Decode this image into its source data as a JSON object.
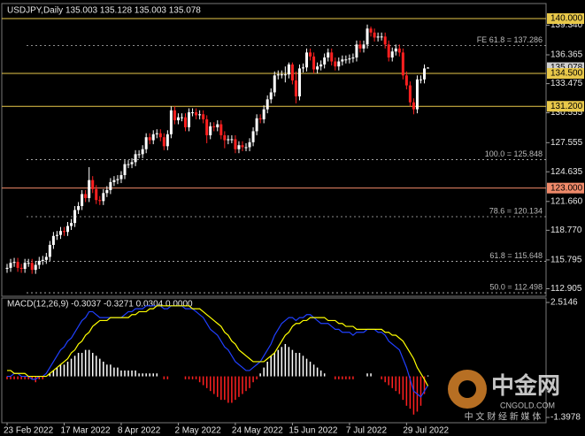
{
  "chart_data": {
    "type": "candlestick",
    "symbol_header": "USDJPY,Daily  135.003 135.128 135.003 135.078",
    "categories": [
      "23 Feb 2022",
      null,
      null,
      null,
      null,
      null,
      null,
      null,
      null,
      null,
      null,
      null,
      null,
      null,
      null,
      null,
      "17 Mar 2022",
      null,
      null,
      null,
      null,
      null,
      null,
      null,
      null,
      null,
      null,
      null,
      null,
      null,
      null,
      null,
      "8 Apr 2022",
      null,
      null,
      null,
      null,
      null,
      null,
      null,
      null,
      null,
      null,
      null,
      null,
      null,
      null,
      null,
      "2 May 2022",
      null,
      null,
      null,
      null,
      null,
      null,
      null,
      null,
      null,
      null,
      null,
      null,
      null,
      null,
      null,
      "24 May 2022",
      null,
      null,
      null,
      null,
      null,
      null,
      null,
      null,
      null,
      null,
      null,
      null,
      null,
      null,
      null,
      "15 Jun 2022",
      null,
      null,
      null,
      null,
      null,
      null,
      null,
      null,
      null,
      null,
      null,
      null,
      null,
      null,
      null,
      "7 Jul 2022",
      null,
      null,
      null,
      null,
      null,
      null,
      null,
      null,
      null,
      null,
      null,
      null,
      null,
      null,
      null,
      "29 Jul 2022",
      null,
      null,
      null,
      null,
      null,
      null
    ],
    "open": [
      114.9,
      115.0,
      115.5,
      115.6,
      115.0,
      114.9,
      115.5,
      115.5,
      114.8,
      115.3,
      115.7,
      115.8,
      116.1,
      117.3,
      118.2,
      118.3,
      118.7,
      118.6,
      119.2,
      119.5,
      120.8,
      121.2,
      122.4,
      122.0,
      123.8,
      122.9,
      121.8,
      121.7,
      122.5,
      122.8,
      123.6,
      123.8,
      123.9,
      124.3,
      125.4,
      125.4,
      125.6,
      126.4,
      126.4,
      126.9,
      128.1,
      127.8,
      128.4,
      128.5,
      128.1,
      127.2,
      128.4,
      130.8,
      129.8,
      130.1,
      130.1,
      129.1,
      130.6,
      130.6,
      130.3,
      130.4,
      129.9,
      128.3,
      129.2,
      129.1,
      129.4,
      128.3,
      127.8,
      127.9,
      127.9,
      126.9,
      127.3,
      127.1,
      127.1,
      127.6,
      128.7,
      130.0,
      129.9,
      130.9,
      131.9,
      132.6,
      134.3,
      134.4,
      134.4,
      134.4,
      135.4,
      133.8,
      132.2,
      135.0,
      135.1,
      136.6,
      136.2,
      134.9,
      135.2,
      135.4,
      136.1,
      136.6,
      135.7,
      135.2,
      135.7,
      135.9,
      135.9,
      136.0,
      136.1,
      137.4,
      137.0,
      137.4,
      139.0,
      138.6,
      138.1,
      138.2,
      138.2,
      137.4,
      136.1,
      136.7,
      137.0,
      136.6,
      134.3,
      133.3,
      131.6,
      130.9,
      133.9,
      133.9,
      135.003
    ],
    "high": [
      115.4,
      115.9,
      116.0,
      116.0,
      115.4,
      115.9,
      115.9,
      115.9,
      115.7,
      116.1,
      116.2,
      116.5,
      117.7,
      118.6,
      118.7,
      119.1,
      119.1,
      119.6,
      119.9,
      121.2,
      121.6,
      122.8,
      122.8,
      125.1,
      124.2,
      123.3,
      122.2,
      122.9,
      123.2,
      124.0,
      124.2,
      124.3,
      124.7,
      125.8,
      125.8,
      126.0,
      126.8,
      126.8,
      127.3,
      128.5,
      128.5,
      128.8,
      128.9,
      128.9,
      128.5,
      128.8,
      131.2,
      131.2,
      130.5,
      130.5,
      130.5,
      131.0,
      131.0,
      131.0,
      130.8,
      130.8,
      130.3,
      129.6,
      129.6,
      129.8,
      129.8,
      128.7,
      128.3,
      128.3,
      128.3,
      127.7,
      127.7,
      127.5,
      128.0,
      129.1,
      130.4,
      130.4,
      131.3,
      132.3,
      133.0,
      134.7,
      134.8,
      134.8,
      135.2,
      135.6,
      135.6,
      134.7,
      135.4,
      135.5,
      137.0,
      137.0,
      136.6,
      135.6,
      135.8,
      136.5,
      137.0,
      137.0,
      136.1,
      136.1,
      136.3,
      136.3,
      136.4,
      136.5,
      137.8,
      137.8,
      137.8,
      139.4,
      139.2,
      139.0,
      138.6,
      138.6,
      138.6,
      137.8,
      137.1,
      137.4,
      137.4,
      137.0,
      134.7,
      133.7,
      132.0,
      134.3,
      134.3,
      135.4,
      135.128
    ],
    "low": [
      114.5,
      114.6,
      115.1,
      114.6,
      114.5,
      114.5,
      115.1,
      114.4,
      114.4,
      114.9,
      115.3,
      115.4,
      115.7,
      116.9,
      117.8,
      117.9,
      118.2,
      118.2,
      118.8,
      119.1,
      120.4,
      120.8,
      121.6,
      121.6,
      122.5,
      121.4,
      121.3,
      121.3,
      122.1,
      122.4,
      123.2,
      123.4,
      123.5,
      123.9,
      125.0,
      125.0,
      125.2,
      126.0,
      126.0,
      126.5,
      127.4,
      127.4,
      128.0,
      127.7,
      126.8,
      126.8,
      128.0,
      129.4,
      129.4,
      129.7,
      128.7,
      128.7,
      130.2,
      129.9,
      129.9,
      129.5,
      127.5,
      127.9,
      128.7,
      128.7,
      127.9,
      127.0,
      127.4,
      127.5,
      126.5,
      126.5,
      126.7,
      126.7,
      126.7,
      127.2,
      128.3,
      129.5,
      129.5,
      130.5,
      131.5,
      132.2,
      133.9,
      134.0,
      133.6,
      134.0,
      133.4,
      131.5,
      131.8,
      134.6,
      134.7,
      135.8,
      134.5,
      134.5,
      134.8,
      135.0,
      135.7,
      135.3,
      134.8,
      134.8,
      135.3,
      135.5,
      135.5,
      135.6,
      135.7,
      136.6,
      136.6,
      137.0,
      138.2,
      137.7,
      137.7,
      137.8,
      137.0,
      135.7,
      135.7,
      136.3,
      136.2,
      133.9,
      132.9,
      131.2,
      130.4,
      130.5,
      133.5,
      133.5,
      135.003
    ],
    "close": [
      115.0,
      115.5,
      115.6,
      115.0,
      114.9,
      115.5,
      115.5,
      114.8,
      115.3,
      115.7,
      115.8,
      116.1,
      117.3,
      118.2,
      118.3,
      118.7,
      118.6,
      119.2,
      119.5,
      120.8,
      121.2,
      122.4,
      122.0,
      123.8,
      122.9,
      121.8,
      121.7,
      122.5,
      122.8,
      123.6,
      123.8,
      123.9,
      124.3,
      125.4,
      125.4,
      125.6,
      126.4,
      126.4,
      126.9,
      128.1,
      127.8,
      128.4,
      128.5,
      128.1,
      127.2,
      128.4,
      130.8,
      129.8,
      130.1,
      130.1,
      129.1,
      130.6,
      130.6,
      130.3,
      130.4,
      129.9,
      128.3,
      129.2,
      129.1,
      129.4,
      128.3,
      127.8,
      127.9,
      127.9,
      126.9,
      127.3,
      127.1,
      127.1,
      127.6,
      128.7,
      130.0,
      129.9,
      130.9,
      131.9,
      132.6,
      134.3,
      134.4,
      134.4,
      134.4,
      135.4,
      133.8,
      132.2,
      135.0,
      135.1,
      136.6,
      136.2,
      134.9,
      135.2,
      135.4,
      136.1,
      136.6,
      135.7,
      135.2,
      135.7,
      135.9,
      135.9,
      136.0,
      136.1,
      137.4,
      137.0,
      137.4,
      139.0,
      138.6,
      138.1,
      138.2,
      138.2,
      137.4,
      136.1,
      136.7,
      137.0,
      136.6,
      134.3,
      133.3,
      131.6,
      130.9,
      133.9,
      133.9,
      135.0,
      135.078
    ],
    "up_color": "#ffffff",
    "down_color": "#ff2020",
    "ylim": [
      112.15,
      141.51
    ],
    "yticks": [
      {
        "value": 139.34,
        "label": "139.340"
      },
      {
        "value": 136.365,
        "label": "136.365"
      },
      {
        "value": 133.475,
        "label": "133.475"
      },
      {
        "value": 130.555,
        "label": "130.555"
      },
      {
        "value": 127.555,
        "label": "127.555"
      },
      {
        "value": 124.635,
        "label": "124.635"
      },
      {
        "value": 121.66,
        "label": "121.660"
      },
      {
        "value": 118.77,
        "label": "118.770"
      },
      {
        "value": 115.795,
        "label": "115.795"
      },
      {
        "value": 112.905,
        "label": "112.905"
      }
    ],
    "last_price": {
      "value": 135.078,
      "label": "135.078"
    },
    "levels": [
      {
        "value": 140,
        "label": "140.000",
        "color": "#e8c84a"
      },
      {
        "value": 134.5,
        "label": "134.500",
        "color": "#e8c84a"
      },
      {
        "value": 131.2,
        "label": "131.200",
        "color": "#e8c84a"
      },
      {
        "value": 123,
        "label": "123.000",
        "color": "#f08a6a"
      }
    ],
    "fib_levels": [
      {
        "value": 137.286,
        "label": "FE 61.8 = 137.286"
      },
      {
        "value": 125.848,
        "label": "100.0 = 125.848"
      },
      {
        "value": 120.134,
        "label": "78.6 = 120.134"
      },
      {
        "value": 115.648,
        "label": "61.8 = 115.648"
      },
      {
        "value": 112.498,
        "label": "50.0 = 112.498"
      }
    ],
    "indicator": {
      "label": "MACD(12,26,9) -0.3037 -0.3271 0.0304 0.0000",
      "y2lim": [
        -1.578,
        2.665
      ],
      "y2ticks": [
        2.5146,
        -1.3978
      ],
      "series": [
        {
          "name": "MACD",
          "color": "#2040ff",
          "values": [
            0.0,
            0.0,
            0.1,
            0.1,
            0.0,
            0.0,
            0.0,
            -0.1,
            -0.1,
            0.0,
            0.0,
            0.1,
            0.3,
            0.5,
            0.7,
            0.9,
            1.0,
            1.2,
            1.3,
            1.5,
            1.7,
            1.9,
            2.0,
            2.2,
            2.2,
            2.1,
            2.0,
            2.0,
            2.0,
            2.0,
            2.0,
            2.0,
            2.0,
            2.1,
            2.2,
            2.2,
            2.3,
            2.3,
            2.3,
            2.4,
            2.4,
            2.4,
            2.4,
            2.4,
            2.3,
            2.3,
            2.4,
            2.4,
            2.4,
            2.4,
            2.3,
            2.3,
            2.3,
            2.2,
            2.1,
            2.0,
            1.8,
            1.6,
            1.5,
            1.4,
            1.2,
            1.0,
            0.9,
            0.7,
            0.5,
            0.4,
            0.3,
            0.2,
            0.2,
            0.3,
            0.4,
            0.5,
            0.7,
            0.9,
            1.1,
            1.4,
            1.6,
            1.8,
            1.9,
            2.0,
            2.0,
            1.9,
            2.0,
            2.0,
            2.1,
            2.1,
            2.0,
            1.9,
            1.8,
            1.8,
            1.8,
            1.7,
            1.6,
            1.6,
            1.5,
            1.5,
            1.5,
            1.4,
            1.5,
            1.5,
            1.5,
            1.6,
            1.6,
            1.6,
            1.5,
            1.5,
            1.4,
            1.2,
            1.1,
            1.0,
            0.9,
            0.6,
            0.3,
            -0.1,
            -0.5,
            -0.6,
            -0.7,
            -0.5,
            -0.3037
          ]
        },
        {
          "name": "Signal",
          "color": "#ffff00",
          "values": [
            0.2,
            0.2,
            0.1,
            0.1,
            0.1,
            0.1,
            0.0,
            0.0,
            0.0,
            0.0,
            0.0,
            0.0,
            0.1,
            0.2,
            0.3,
            0.4,
            0.5,
            0.6,
            0.8,
            0.9,
            1.1,
            1.2,
            1.4,
            1.5,
            1.7,
            1.8,
            1.9,
            1.9,
            1.9,
            2.0,
            2.0,
            2.0,
            2.0,
            2.0,
            2.0,
            2.1,
            2.1,
            2.2,
            2.2,
            2.2,
            2.3,
            2.3,
            2.4,
            2.4,
            2.4,
            2.4,
            2.4,
            2.4,
            2.4,
            2.4,
            2.4,
            2.4,
            2.3,
            2.3,
            2.3,
            2.2,
            2.1,
            2.0,
            1.9,
            1.8,
            1.7,
            1.5,
            1.4,
            1.2,
            1.1,
            0.9,
            0.8,
            0.7,
            0.6,
            0.5,
            0.5,
            0.5,
            0.5,
            0.6,
            0.7,
            0.8,
            1.0,
            1.2,
            1.4,
            1.5,
            1.7,
            1.8,
            1.8,
            1.9,
            1.9,
            2.0,
            2.0,
            2.0,
            2.0,
            2.0,
            1.9,
            1.9,
            1.9,
            1.8,
            1.8,
            1.7,
            1.7,
            1.7,
            1.6,
            1.6,
            1.6,
            1.6,
            1.6,
            1.6,
            1.6,
            1.6,
            1.5,
            1.5,
            1.4,
            1.4,
            1.3,
            1.2,
            1.0,
            0.8,
            0.6,
            0.3,
            0.1,
            -0.1,
            -0.3271
          ]
        }
      ],
      "histogram": [
        -0.1,
        -0.1,
        -0.1,
        -0.1,
        -0.1,
        -0.1,
        -0.1,
        -0.1,
        -0.2,
        -0.1,
        -0.1,
        0.0,
        0.1,
        0.2,
        0.3,
        0.4,
        0.4,
        0.5,
        0.6,
        0.7,
        0.8,
        0.8,
        0.9,
        0.9,
        0.8,
        0.7,
        0.6,
        0.5,
        0.4,
        0.4,
        0.3,
        0.3,
        0.2,
        0.2,
        0.2,
        0.2,
        0.2,
        0.1,
        0.1,
        0.1,
        0.1,
        0.1,
        0.1,
        0.0,
        -0.1,
        -0.1,
        0.0,
        0.0,
        0.0,
        0.0,
        -0.1,
        -0.1,
        -0.1,
        -0.1,
        -0.2,
        -0.3,
        -0.4,
        -0.5,
        -0.6,
        -0.7,
        -0.8,
        -0.8,
        -0.9,
        -0.9,
        -0.8,
        -0.7,
        -0.6,
        -0.5,
        -0.4,
        -0.2,
        -0.1,
        0.1,
        0.3,
        0.5,
        0.7,
        0.8,
        0.9,
        1.0,
        1.1,
        1.0,
        0.9,
        0.8,
        0.8,
        0.7,
        0.6,
        0.5,
        0.4,
        0.3,
        0.2,
        0.1,
        0.0,
        0.0,
        -0.1,
        -0.1,
        -0.1,
        -0.1,
        -0.1,
        -0.1,
        0.0,
        0.0,
        0.0,
        0.1,
        0.1,
        0.0,
        0.0,
        -0.1,
        -0.2,
        -0.3,
        -0.4,
        -0.5,
        -0.6,
        -0.8,
        -1.0,
        -1.1,
        -1.3,
        -1.2,
        -1.0,
        -0.6,
        0.0304
      ],
      "hist_up_color": "#ffffff",
      "hist_down_color": "#ff2020"
    }
  },
  "watermark": {
    "brand": "中金网",
    "site": "CNGOLD.COM",
    "slogan": "中 文 财 经 新 媒 体"
  }
}
